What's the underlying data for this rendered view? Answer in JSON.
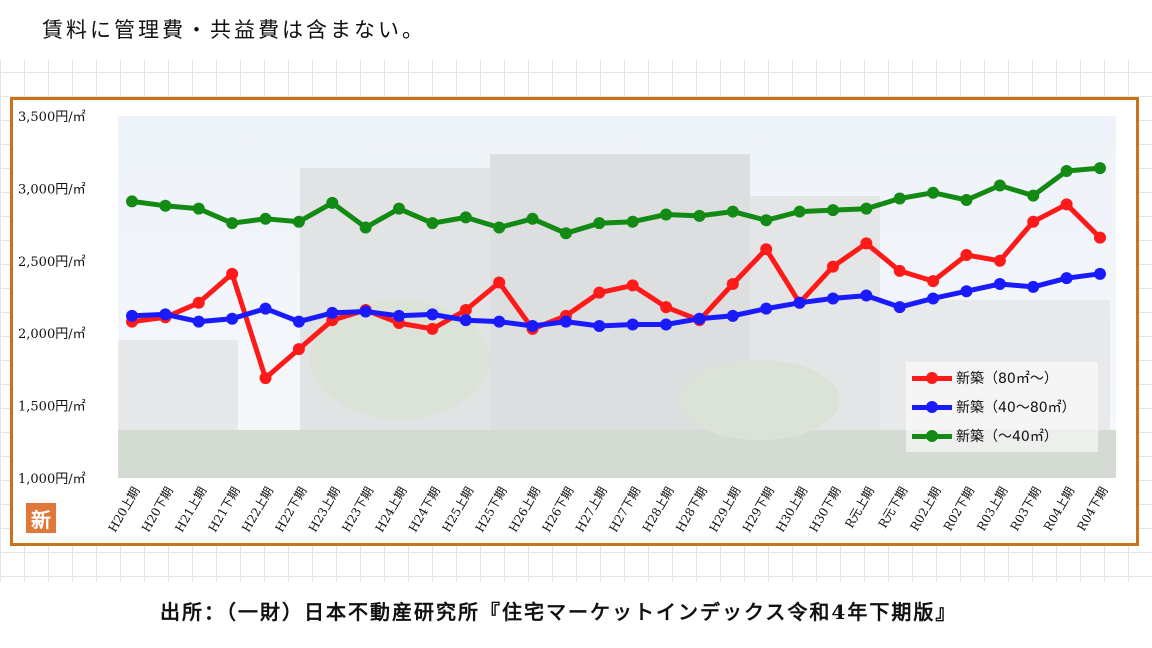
{
  "header": {
    "note": "賃料に管理費・共益費は含まない。"
  },
  "footer": {
    "source": "出所：（一財）日本不動産研究所『住宅マーケットインデックス令和4年下期版』"
  },
  "badge": {
    "label": "新"
  },
  "colors": {
    "frame": "#c8741c",
    "red": "#ff1a1a",
    "blue": "#1a1aff",
    "green": "#138a13"
  },
  "chart_data": {
    "type": "line",
    "background_image": "office-building-photo",
    "categories": [
      "H20上期",
      "H20下期",
      "H21上期",
      "H21下期",
      "H22上期",
      "H22下期",
      "H23上期",
      "H23下期",
      "H24上期",
      "H24下期",
      "H25上期",
      "H25下期",
      "H26上期",
      "H26下期",
      "H27上期",
      "H27下期",
      "H28上期",
      "H28下期",
      "H29上期",
      "H29下期",
      "H30上期",
      "H30下期",
      "R元上期",
      "R元下期",
      "R02上期",
      "R02下期",
      "R03上期",
      "R03下期",
      "R04上期",
      "R04下期"
    ],
    "ylim": [
      1000,
      3500
    ],
    "yticks": [
      {
        "value": 1000,
        "label": "1,000円/㎡"
      },
      {
        "value": 1500,
        "label": "1,500円/㎡"
      },
      {
        "value": 2000,
        "label": "2,000円/㎡"
      },
      {
        "value": 2500,
        "label": "2,500円/㎡"
      },
      {
        "value": 3000,
        "label": "3,000円/㎡"
      },
      {
        "value": 3500,
        "label": "3,500円/㎡"
      }
    ],
    "legend_position": "bottom-right",
    "grid": false,
    "series": [
      {
        "name": "新築（80㎡～）",
        "color": "#ff1a1a",
        "values": [
          2080,
          2110,
          2210,
          2410,
          1690,
          1890,
          2090,
          2160,
          2070,
          2030,
          2160,
          2350,
          2030,
          2120,
          2280,
          2330,
          2180,
          2090,
          2340,
          2580,
          2210,
          2460,
          2620,
          2430,
          2360,
          2540,
          2500,
          2770,
          2890,
          2660
        ]
      },
      {
        "name": "新築（40～80㎡）",
        "color": "#1a1aff",
        "values": [
          2120,
          2130,
          2080,
          2100,
          2170,
          2080,
          2140,
          2150,
          2120,
          2130,
          2090,
          2080,
          2050,
          2080,
          2050,
          2060,
          2060,
          2100,
          2120,
          2170,
          2210,
          2240,
          2260,
          2180,
          2240,
          2290,
          2340,
          2320,
          2380,
          2410
        ]
      },
      {
        "name": "新築（～40㎡）",
        "color": "#138a13",
        "values": [
          2910,
          2880,
          2860,
          2760,
          2790,
          2770,
          2900,
          2730,
          2860,
          2760,
          2800,
          2730,
          2790,
          2690,
          2760,
          2770,
          2820,
          2810,
          2840,
          2780,
          2840,
          2850,
          2860,
          2930,
          2970,
          2920,
          3020,
          2950,
          3120,
          3140
        ]
      }
    ]
  }
}
